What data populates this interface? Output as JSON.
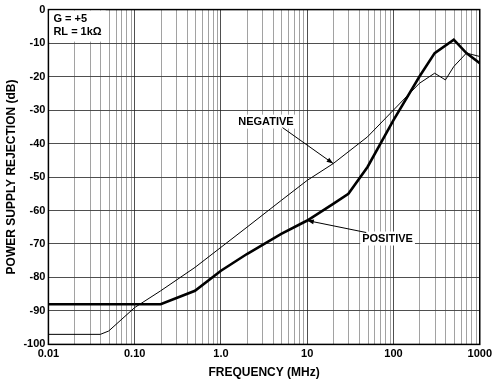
{
  "chart_data": {
    "type": "line",
    "x_label": "FREQUENCY (MHz)",
    "y_label": "POWER SUPPLY REJECTION (dB)",
    "annotations": [
      "G = +5",
      "RL = 1kΩ"
    ],
    "log": "x",
    "grid": true,
    "xlim": [
      0.01,
      1000
    ],
    "xticks": [
      0.01,
      {
        "value": 0.1,
        "label": "0.10"
      },
      {
        "value": 1,
        "label": "1.0"
      },
      10,
      100,
      1000
    ],
    "ylim": [
      -100,
      0
    ],
    "yticks": [
      0,
      -10,
      -20,
      -30,
      -40,
      -50,
      -60,
      -70,
      -80,
      -90,
      -100
    ],
    "series": [
      {
        "name": "NEGATIVE",
        "color": "#000000",
        "line_style": "solid",
        "x": [
          0.01,
          0.04,
          0.05,
          0.1,
          0.2,
          0.5,
          1,
          2,
          5,
          10,
          20,
          50,
          100,
          200,
          300,
          400,
          500,
          700,
          1000
        ],
        "values": [
          -97,
          -97,
          -96,
          -89,
          -84,
          -77,
          -71,
          -65,
          -57,
          -51,
          -46,
          -38,
          -30,
          -22,
          -19,
          -21,
          -17,
          -13,
          -14
        ]
      },
      {
        "name": "POSITIVE",
        "color": "#000000",
        "line_style": "solid",
        "x": [
          0.01,
          0.2,
          0.5,
          1,
          2,
          5,
          10,
          20,
          30,
          50,
          100,
          200,
          300,
          500,
          700,
          1000
        ],
        "values": [
          -88,
          -88,
          -84,
          -78,
          -73,
          -67,
          -63,
          -58,
          -55,
          -47,
          -33,
          -20,
          -13,
          -9,
          -13,
          -16
        ]
      }
    ]
  }
}
